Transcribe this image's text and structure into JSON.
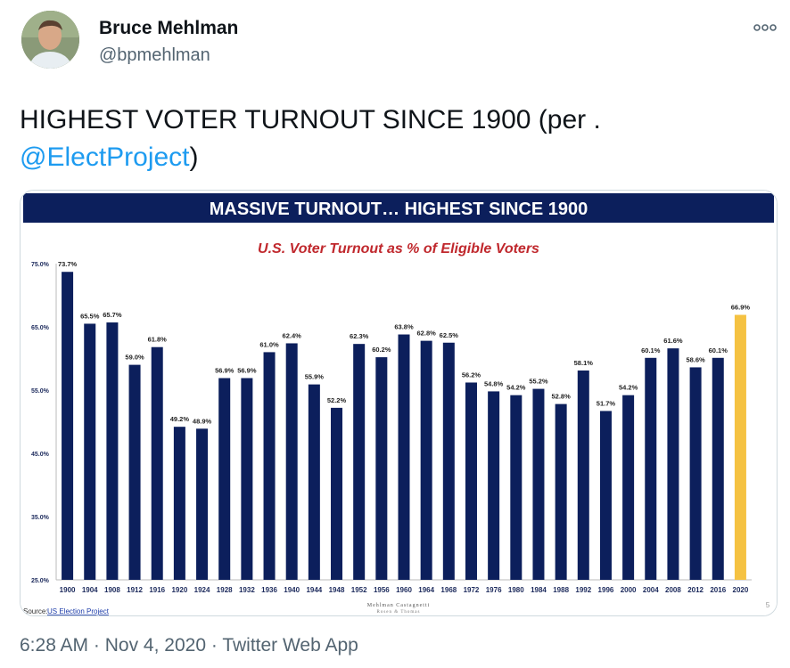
{
  "tweet": {
    "author_name": "Bruce Mehlman",
    "author_handle": "@bpmehlman",
    "text_main": "HIGHEST VOTER TURNOUT SINCE 1900 (per .",
    "mention": "@ElectProject",
    "text_tail": ")",
    "time": "6:28 AM",
    "separator": "·",
    "date": "Nov 4, 2020",
    "app": "Twitter Web App"
  },
  "colors": {
    "navy": "#0c1f5c",
    "gold": "#f5c242",
    "title_red": "#c0282d",
    "link_blue": "#1d9bf0"
  },
  "slide": {
    "header": "MASSIVE TURNOUT… HIGHEST SINCE 1900",
    "source_label": "Source:",
    "source_link": "US Election Project",
    "logo_line1": "Mehlman Castagnetti",
    "logo_line2": "Rosen & Thomas",
    "page_number": "5"
  },
  "chart_data": {
    "type": "bar",
    "title": "U.S. Voter Turnout as % of Eligible Voters",
    "xlabel": "",
    "ylabel": "",
    "ylim": [
      25,
      75
    ],
    "yticks": [
      25,
      35,
      45,
      55,
      65,
      75
    ],
    "ytick_labels": [
      "25.0%",
      "35.0%",
      "45.0%",
      "55.0%",
      "65.0%",
      "75.0%"
    ],
    "categories": [
      "1900",
      "1904",
      "1908",
      "1912",
      "1916",
      "1920",
      "1924",
      "1928",
      "1932",
      "1936",
      "1940",
      "1944",
      "1948",
      "1952",
      "1956",
      "1960",
      "1964",
      "1968",
      "1972",
      "1976",
      "1980",
      "1984",
      "1988",
      "1992",
      "1996",
      "2000",
      "2004",
      "2008",
      "2012",
      "2016",
      "2020"
    ],
    "values": [
      73.7,
      65.5,
      65.7,
      59.0,
      61.8,
      49.2,
      48.9,
      56.9,
      56.9,
      61.0,
      62.4,
      55.9,
      52.2,
      62.3,
      60.2,
      63.8,
      62.8,
      62.5,
      56.2,
      54.8,
      54.2,
      55.2,
      52.8,
      58.1,
      51.7,
      54.2,
      60.1,
      61.6,
      58.6,
      60.1,
      66.9
    ],
    "labels": [
      "73.7%",
      "65.5%",
      "65.7%",
      "59.0%",
      "61.8%",
      "49.2%",
      "48.9%",
      "56.9%",
      "56.9%",
      "61.0%",
      "62.4%",
      "55.9%",
      "52.2%",
      "62.3%",
      "60.2%",
      "63.8%",
      "62.8%",
      "62.5%",
      "56.2%",
      "54.8%",
      "54.2%",
      "55.2%",
      "52.8%",
      "58.1%",
      "51.7%",
      "54.2%",
      "60.1%",
      "61.6%",
      "58.6%",
      "60.1%",
      "66.9%"
    ],
    "highlight_index": 30
  }
}
